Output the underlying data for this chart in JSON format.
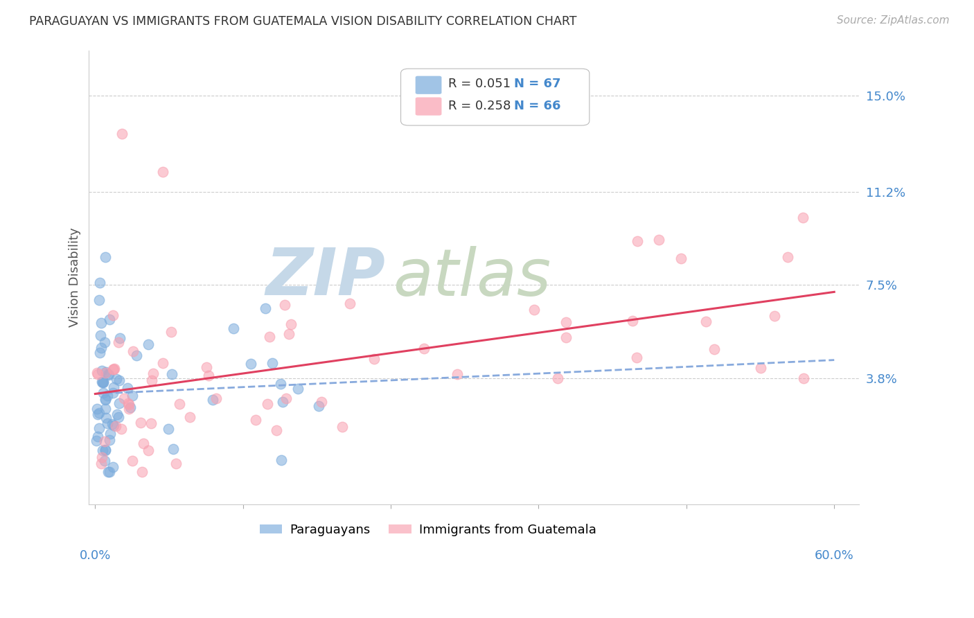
{
  "title": "PARAGUAYAN VS IMMIGRANTS FROM GUATEMALA VISION DISABILITY CORRELATION CHART",
  "source": "Source: ZipAtlas.com",
  "ylabel": "Vision Disability",
  "ytick_labels": [
    "3.8%",
    "7.5%",
    "11.2%",
    "15.0%"
  ],
  "ytick_values": [
    0.038,
    0.075,
    0.112,
    0.15
  ],
  "xlim": [
    -0.005,
    0.62
  ],
  "ylim": [
    -0.012,
    0.168
  ],
  "r1": "0.051",
  "n1": "67",
  "r2": "0.258",
  "n2": "66",
  "blue_color": "#7aabdc",
  "pink_color": "#f8a0b0",
  "trendline_blue_color": "#88aadd",
  "trendline_pink_color": "#e04060",
  "label1": "Paraguayans",
  "label2": "Immigrants from Guatemala",
  "background_color": "#ffffff",
  "title_color": "#333333",
  "source_color": "#aaaaaa",
  "axis_label_color": "#4488cc",
  "ylabel_color": "#555555",
  "watermark_zip_color": "#c5d8e8",
  "watermark_atlas_color": "#c8d8c0"
}
